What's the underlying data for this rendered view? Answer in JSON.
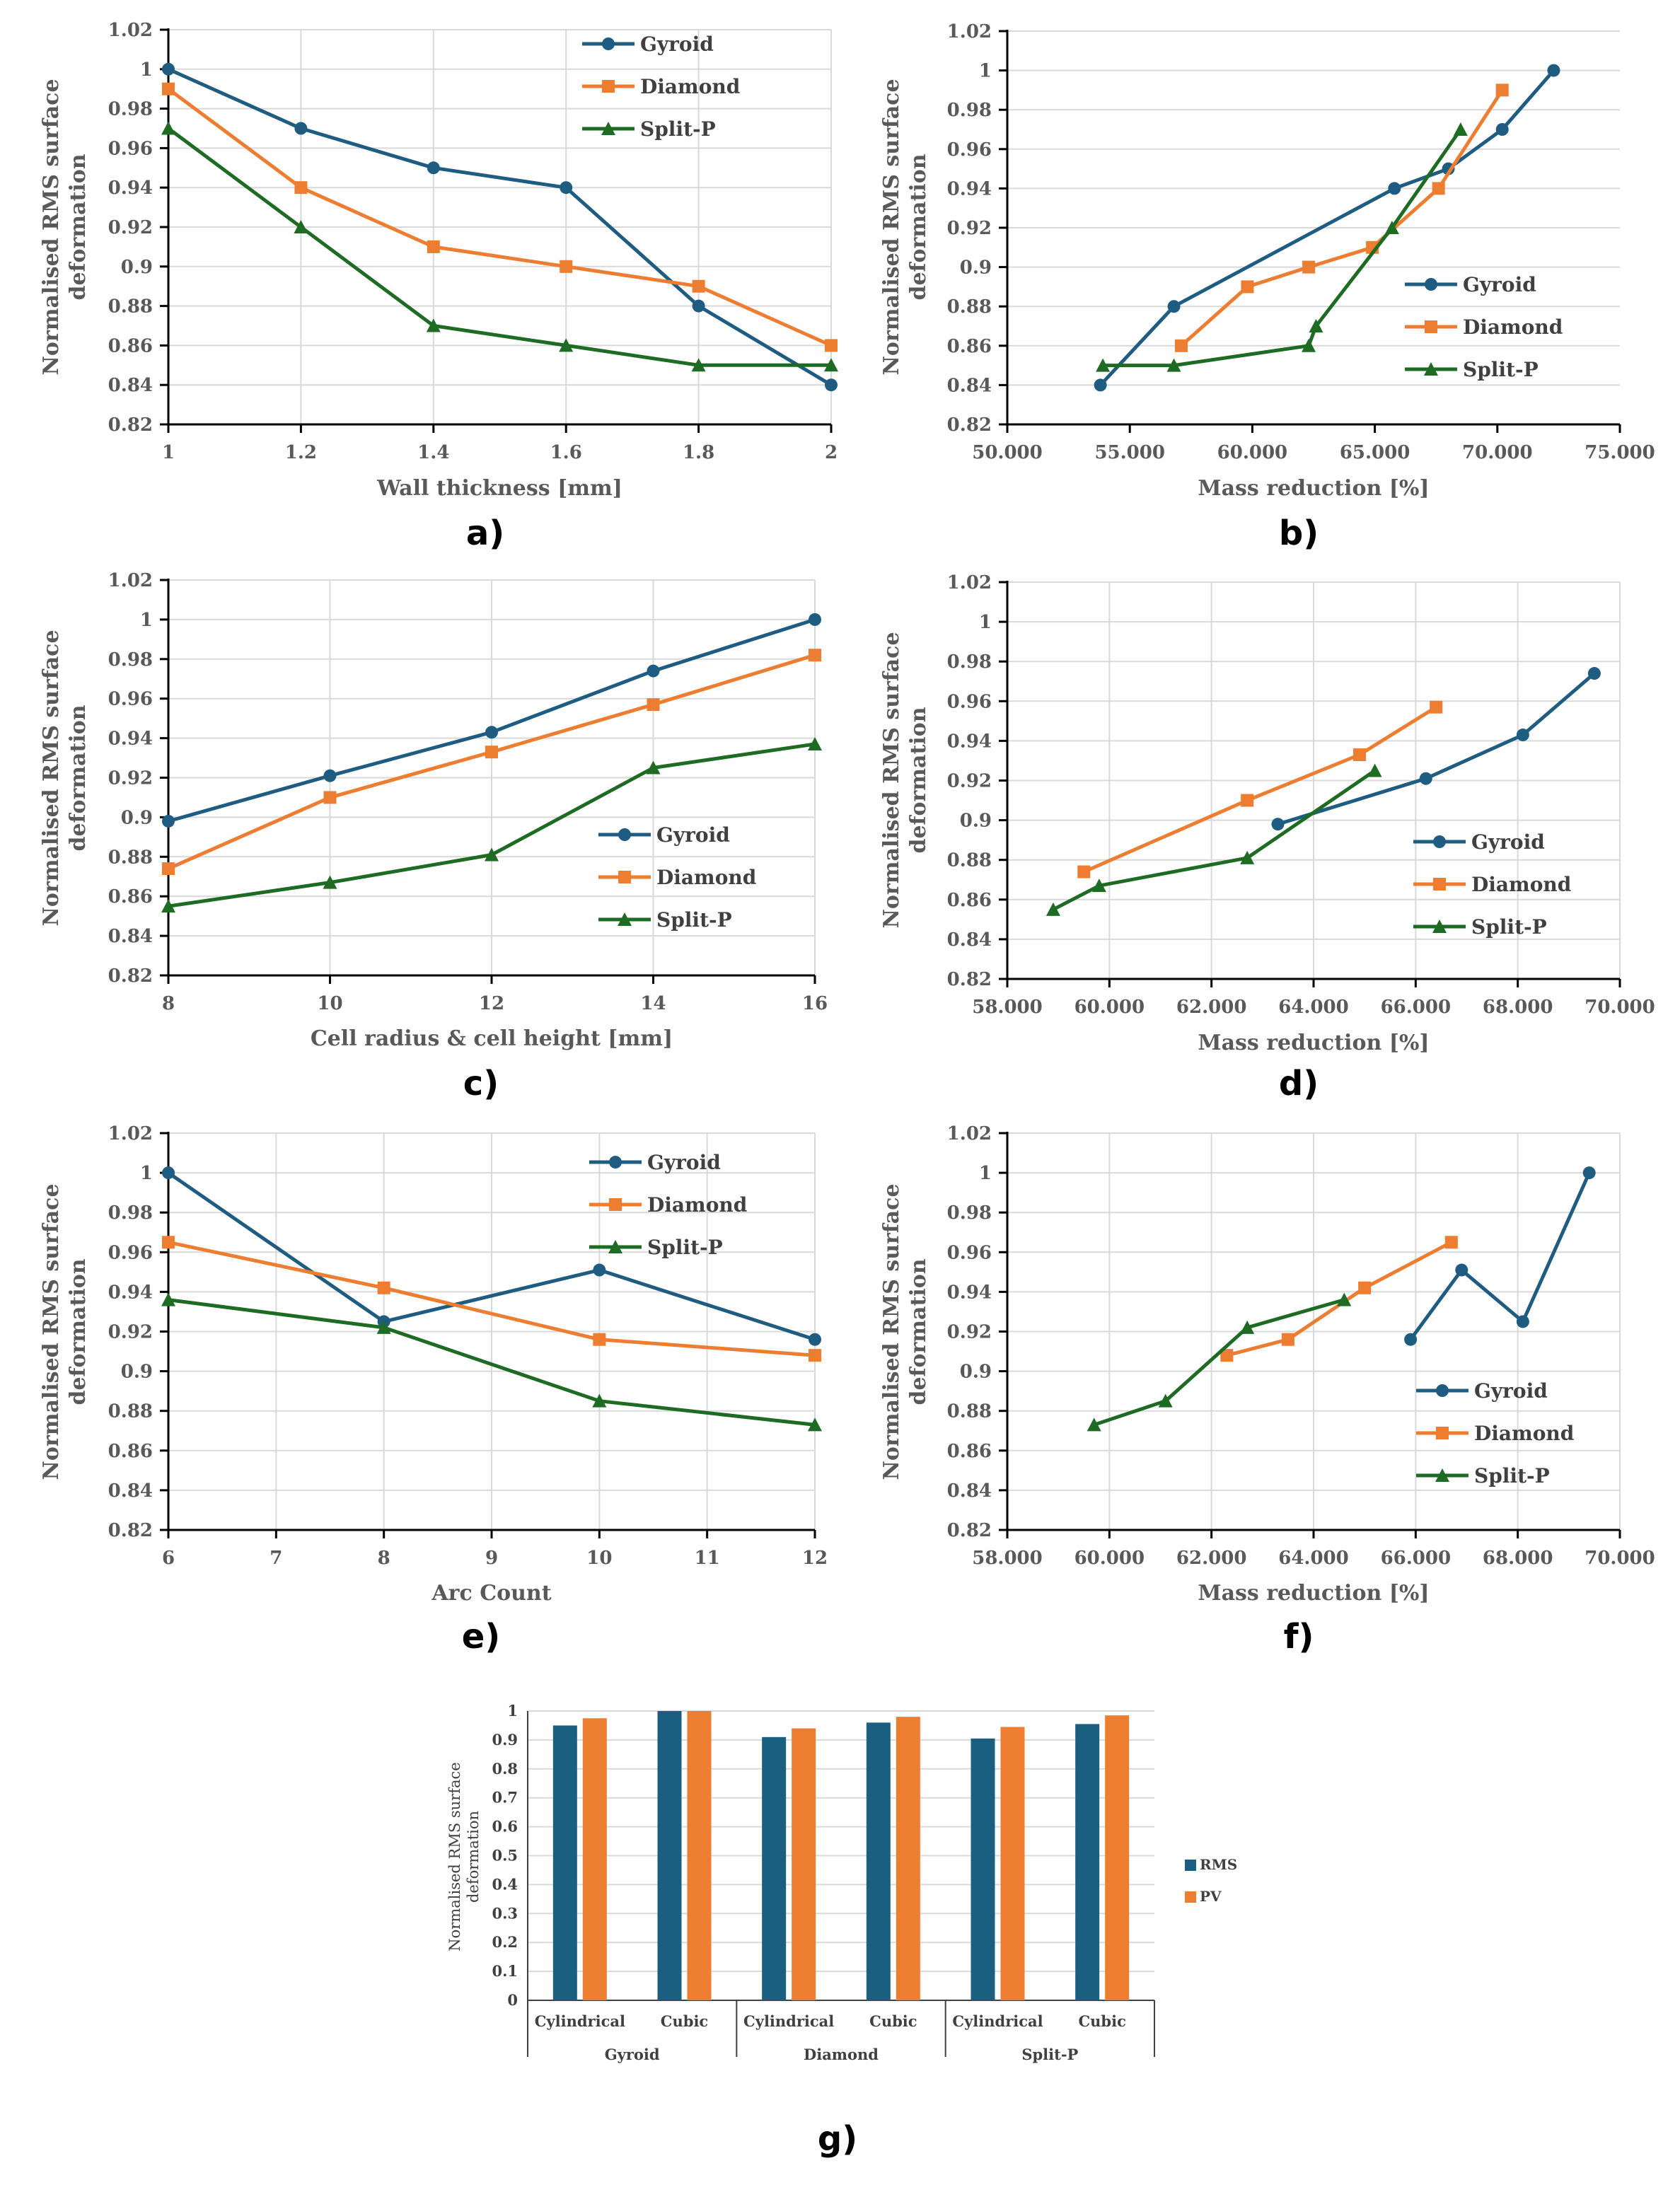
{
  "colors": {
    "gyroid": "#1f5c82",
    "diamond": "#ed7d31",
    "splitp": "#1e6b24",
    "rms": "#1a5f80",
    "pv": "#ed7d31",
    "grid": "#d9d9d9",
    "axis": "#000000"
  },
  "chart_data": [
    {
      "id": "a",
      "type": "line",
      "panel_label": "a)",
      "xlabel": "Wall thickness [mm]",
      "ylabel": "Normalised RMS surface deformation",
      "xlim": [
        1,
        2
      ],
      "ylim": [
        0.82,
        1.02
      ],
      "x_ticks": [
        "1",
        "1.2",
        "1.4",
        "1.6",
        "1.8",
        "2"
      ],
      "y_ticks": [
        "0.82",
        "0.84",
        "0.86",
        "0.88",
        "0.9",
        "0.92",
        "0.94",
        "0.96",
        "0.98",
        "1",
        "1.02"
      ],
      "legend_position": "top-right",
      "series": [
        {
          "name": "Gyroid",
          "x": [
            1,
            1.2,
            1.4,
            1.6,
            1.8,
            2
          ],
          "y": [
            1.0,
            0.97,
            0.95,
            0.94,
            0.88,
            0.84
          ]
        },
        {
          "name": "Diamond",
          "x": [
            1,
            1.2,
            1.4,
            1.6,
            1.8,
            2
          ],
          "y": [
            0.99,
            0.94,
            0.91,
            0.9,
            0.89,
            0.86
          ]
        },
        {
          "name": "Split-P",
          "x": [
            1,
            1.2,
            1.4,
            1.6,
            1.8,
            2
          ],
          "y": [
            0.97,
            0.92,
            0.87,
            0.86,
            0.85,
            0.85
          ]
        }
      ]
    },
    {
      "id": "b",
      "type": "scatter-line",
      "panel_label": "b)",
      "xlabel": "Mass reduction [%]",
      "ylabel": "Normalised RMS surface deformation",
      "xlim": [
        50,
        75
      ],
      "ylim": [
        0.82,
        1.02
      ],
      "x_ticks": [
        "50.000",
        "55.000",
        "60.000",
        "65.000",
        "70.000",
        "75.000"
      ],
      "y_ticks": [
        "0.82",
        "0.84",
        "0.86",
        "0.88",
        "0.9",
        "0.92",
        "0.94",
        "0.96",
        "0.98",
        "1",
        "1.02"
      ],
      "legend_position": "middle-right",
      "series": [
        {
          "name": "Gyroid",
          "x": [
            53.8,
            56.8,
            65.8,
            68.0,
            70.2,
            72.3
          ],
          "y": [
            0.84,
            0.88,
            0.94,
            0.95,
            0.97,
            1.0
          ]
        },
        {
          "name": "Diamond",
          "x": [
            57.1,
            59.8,
            62.3,
            64.9,
            67.6,
            70.2
          ],
          "y": [
            0.86,
            0.89,
            0.9,
            0.91,
            0.94,
            0.99
          ]
        },
        {
          "name": "Split-P",
          "x": [
            53.9,
            56.8,
            62.3,
            62.6,
            65.7,
            68.5
          ],
          "y": [
            0.85,
            0.85,
            0.86,
            0.87,
            0.92,
            0.97
          ]
        }
      ]
    },
    {
      "id": "c",
      "type": "line",
      "panel_label": "c)",
      "xlabel": "Cell radius & cell height [mm]",
      "ylabel": "Normalised RMS surface deformation",
      "xlim": [
        8,
        16
      ],
      "ylim": [
        0.82,
        1.02
      ],
      "x_ticks": [
        "8",
        "10",
        "12",
        "14",
        "16"
      ],
      "y_ticks": [
        "0.82",
        "0.84",
        "0.86",
        "0.88",
        "0.9",
        "0.92",
        "0.94",
        "0.96",
        "0.98",
        "1",
        "1.02"
      ],
      "legend_position": "bottom-right",
      "series": [
        {
          "name": "Gyroid",
          "x": [
            8,
            10,
            12,
            14,
            16
          ],
          "y": [
            0.898,
            0.921,
            0.943,
            0.974,
            1.0
          ]
        },
        {
          "name": "Diamond",
          "x": [
            8,
            10,
            12,
            14,
            16
          ],
          "y": [
            0.874,
            0.91,
            0.933,
            0.957,
            0.982
          ]
        },
        {
          "name": "Split-P",
          "x": [
            8,
            10,
            12,
            14,
            16
          ],
          "y": [
            0.855,
            0.867,
            0.881,
            0.925,
            0.937
          ]
        }
      ]
    },
    {
      "id": "d",
      "type": "scatter-line",
      "panel_label": "d)",
      "xlabel": "Mass reduction [%]",
      "ylabel": "Normalised RMS surface deformation",
      "xlim": [
        58,
        70
      ],
      "ylim": [
        0.82,
        1.02
      ],
      "x_ticks": [
        "58.000",
        "60.000",
        "62.000",
        "64.000",
        "66.000",
        "68.000",
        "70.000"
      ],
      "y_ticks": [
        "0.82",
        "0.84",
        "0.86",
        "0.88",
        "0.9",
        "0.92",
        "0.94",
        "0.96",
        "0.98",
        "1",
        "1.02"
      ],
      "legend_position": "bottom-right",
      "series": [
        {
          "name": "Gyroid",
          "x": [
            63.3,
            66.2,
            68.1,
            69.5
          ],
          "y": [
            0.898,
            0.921,
            0.943,
            0.974
          ]
        },
        {
          "name": "Diamond",
          "x": [
            59.5,
            62.7,
            64.9,
            66.4
          ],
          "y": [
            0.874,
            0.91,
            0.933,
            0.957
          ]
        },
        {
          "name": "Split-P",
          "x": [
            58.9,
            59.8,
            62.7,
            65.2
          ],
          "y": [
            0.855,
            0.867,
            0.881,
            0.925
          ]
        }
      ]
    },
    {
      "id": "e",
      "type": "line",
      "panel_label": "e)",
      "xlabel": "Arc Count",
      "ylabel": "Normalised RMS surface deformation",
      "xlim": [
        6,
        12
      ],
      "ylim": [
        0.82,
        1.02
      ],
      "x_ticks": [
        "6",
        "7",
        "8",
        "9",
        "10",
        "11",
        "12"
      ],
      "y_ticks": [
        "0.82",
        "0.84",
        "0.86",
        "0.88",
        "0.9",
        "0.92",
        "0.94",
        "0.96",
        "0.98",
        "1",
        "1.02"
      ],
      "legend_position": "top-right",
      "series": [
        {
          "name": "Gyroid",
          "x": [
            6,
            8,
            10,
            12
          ],
          "y": [
            1.0,
            0.925,
            0.951,
            0.916
          ]
        },
        {
          "name": "Diamond",
          "x": [
            6,
            8,
            10,
            12
          ],
          "y": [
            0.965,
            0.942,
            0.916,
            0.908
          ]
        },
        {
          "name": "Split-P",
          "x": [
            6,
            8,
            10,
            12
          ],
          "y": [
            0.936,
            0.922,
            0.885,
            0.873
          ]
        }
      ]
    },
    {
      "id": "f",
      "type": "scatter-line",
      "panel_label": "f)",
      "xlabel": "Mass reduction [%]",
      "ylabel": "Normalised RMS surface deformation",
      "xlim": [
        58,
        70
      ],
      "ylim": [
        0.82,
        1.02
      ],
      "x_ticks": [
        "58.000",
        "60.000",
        "62.000",
        "64.000",
        "66.000",
        "68.000",
        "70.000"
      ],
      "y_ticks": [
        "0.82",
        "0.84",
        "0.86",
        "0.88",
        "0.9",
        "0.92",
        "0.94",
        "0.96",
        "0.98",
        "1",
        "1.02"
      ],
      "legend_position": "bottom-right",
      "series": [
        {
          "name": "Gyroid",
          "x": [
            65.9,
            66.9,
            68.1,
            69.4
          ],
          "y": [
            0.916,
            0.951,
            0.925,
            1.0
          ]
        },
        {
          "name": "Diamond",
          "x": [
            62.3,
            63.5,
            65.0,
            66.7
          ],
          "y": [
            0.908,
            0.916,
            0.942,
            0.965
          ]
        },
        {
          "name": "Split-P",
          "x": [
            59.7,
            61.1,
            62.7,
            64.6
          ],
          "y": [
            0.873,
            0.885,
            0.922,
            0.936
          ]
        }
      ]
    },
    {
      "id": "g",
      "type": "bar",
      "panel_label": "g)",
      "ylabel": "Normalised RMS surface deformation",
      "ylim": [
        0,
        1
      ],
      "y_ticks": [
        "0",
        "0.1",
        "0.2",
        "0.3",
        "0.4",
        "0.5",
        "0.6",
        "0.7",
        "0.8",
        "0.9",
        "1"
      ],
      "categories": [
        "Cylindrical",
        "Cubic",
        "Cylindrical",
        "Cubic",
        "Cylindrical",
        "Cubic"
      ],
      "groups": [
        "Gyroid",
        "Diamond",
        "Split-P"
      ],
      "legend_position": "right",
      "series": [
        {
          "name": "RMS",
          "values": [
            0.95,
            1.0,
            0.91,
            0.96,
            0.905,
            0.955
          ]
        },
        {
          "name": "PV",
          "values": [
            0.975,
            1.0,
            0.94,
            0.98,
            0.945,
            0.985
          ]
        }
      ]
    }
  ]
}
